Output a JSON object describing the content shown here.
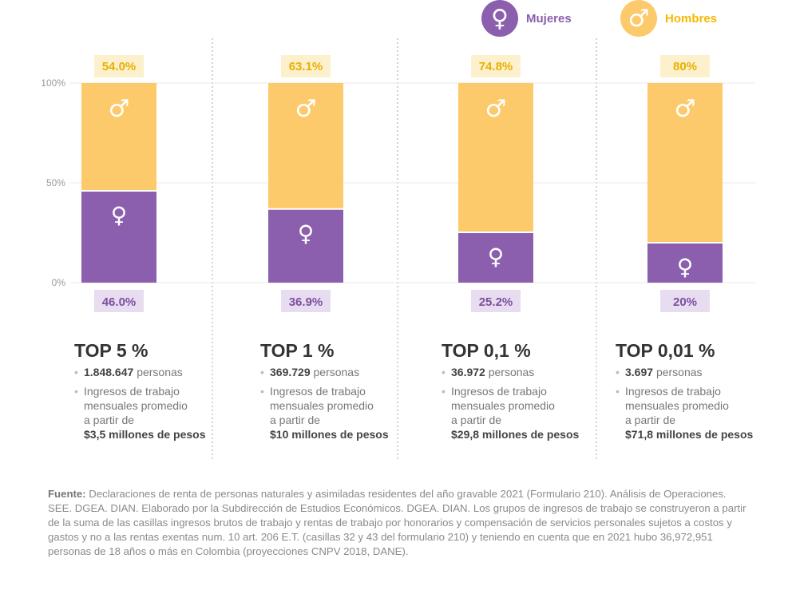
{
  "legend": {
    "mujeres": {
      "label": "Mujeres",
      "icon": "female-symbol-icon",
      "color": "#8b5fad"
    },
    "hombres": {
      "label": "Hombres",
      "icon": "male-symbol-icon",
      "color": "#fdca6b"
    }
  },
  "chart_data": {
    "type": "bar",
    "stacked": true,
    "categories": [
      "TOP 5 %",
      "TOP 1 %",
      "TOP 0,1 %",
      "TOP 0,01 %"
    ],
    "series": [
      {
        "name": "Mujeres",
        "values": [
          46.0,
          36.9,
          25.2,
          20
        ],
        "labels": [
          "46.0%",
          "36.9%",
          "25.2%",
          "20%"
        ],
        "color": "#8b5fad"
      },
      {
        "name": "Hombres",
        "values": [
          54.0,
          63.1,
          74.8,
          80
        ],
        "labels": [
          "54.0%",
          "63.1%",
          "74.8%",
          "80%"
        ],
        "color": "#fdca6b"
      }
    ],
    "yticks": [
      "0%",
      "50%",
      "100%"
    ],
    "ylim": [
      0,
      100
    ],
    "grid": true,
    "legend_position": "top-right"
  },
  "groups": [
    {
      "title": "TOP 5 %",
      "people": "1.848.647",
      "people_suffix": "personas",
      "income_line1": "Ingresos de trabajo",
      "income_line2": "mensuales promedio",
      "income_line3": "a partir de",
      "amount": "$3,5 millones de pesos"
    },
    {
      "title": "TOP 1 %",
      "people": "369.729",
      "people_suffix": "personas",
      "income_line1": "Ingresos de trabajo",
      "income_line2": "mensuales promedio",
      "income_line3": "a partir de",
      "amount": "$10 millones de pesos"
    },
    {
      "title": "TOP 0,1 %",
      "people": "36.972",
      "people_suffix": "personas",
      "income_line1": "Ingresos de trabajo",
      "income_line2": "mensuales promedio",
      "income_line3": "a partir de",
      "amount": "$29,8 millones de pesos"
    },
    {
      "title": "TOP 0,01 %",
      "people": "3.697",
      "people_suffix": "personas",
      "income_line1": "Ingresos de trabajo",
      "income_line2": "mensuales promedio",
      "income_line3": "a partir de",
      "amount": "$71,8 millones de pesos"
    }
  ],
  "source": {
    "label": "Fuente:",
    "text": "Declaraciones de renta de personas naturales y asimiladas residentes del año gravable 2021 (Formulario 210). Análisis de Operaciones. SEE. DGEA. DIAN. Elaborado por la Subdirección de Estudios Económicos. DGEA. DIAN. Los grupos de ingresos de trabajo se construyeron a partir de la suma de las casillas ingresos brutos de trabajo y rentas de trabajo por honorarios y compensación de servicios personales sujetos a costos y gastos y no a las rentas exentas num. 10 art. 206 E.T. (casillas 32 y 43 del formulario 210) y teniendo en cuenta que en 2021 hubo 36,972,951 personas de 18 años o más en Colombia (proyecciones CNPV 2018, DANE)."
  }
}
